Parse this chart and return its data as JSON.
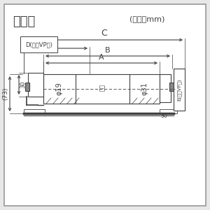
{
  "bg_color": "#e8e8e8",
  "inner_bg": "#ffffff",
  "line_color": "#404040",
  "title": "寸法図",
  "unit_text": "(単位：mm)",
  "label_C": "C",
  "label_B": "B",
  "label_A": "A",
  "label_D": "D(適合VP管)",
  "label_E": "E(適合VP管)",
  "label_phi19": "φ19",
  "label_phi31": "φ31",
  "label_73": "(73)",
  "label_30_left": "30",
  "label_30_right": "30",
  "dim_inner_text": "内径"
}
